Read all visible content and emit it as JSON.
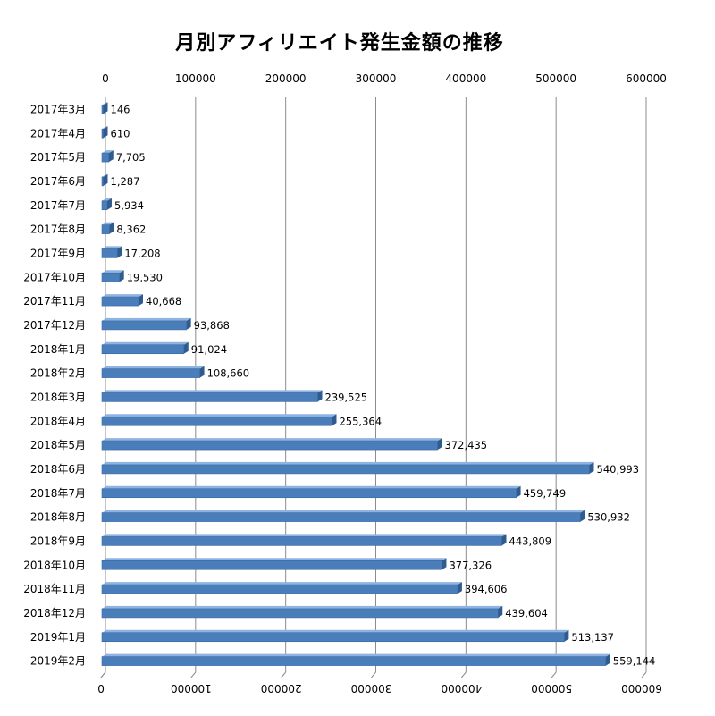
{
  "chart_data": {
    "type": "bar",
    "orientation": "horizontal",
    "style": "3d",
    "title": "月別アフィリエイト発生金額の推移",
    "xlabel": "",
    "ylabel": "",
    "xlim": [
      0,
      600000
    ],
    "ticks": [
      "0",
      "100000",
      "200000",
      "300000",
      "400000",
      "500000",
      "600000"
    ],
    "tick_values": [
      0,
      100000,
      200000,
      300000,
      400000,
      500000,
      600000
    ],
    "grid": true,
    "legend": "none",
    "bar_color": "#4a7ebb",
    "categories": [
      "2017年3月",
      "2017年4月",
      "2017年5月",
      "2017年6月",
      "2017年7月",
      "2017年8月",
      "2017年9月",
      "2017年10月",
      "2017年11月",
      "2017年12月",
      "2018年1月",
      "2018年2月",
      "2018年3月",
      "2018年4月",
      "2018年5月",
      "2018年6月",
      "2018年7月",
      "2018年8月",
      "2018年9月",
      "2018年10月",
      "2018年11月",
      "2018年12月",
      "2019年1月",
      "2019年2月"
    ],
    "values": [
      146,
      610,
      7705,
      1287,
      5934,
      8362,
      17208,
      19530,
      40668,
      93868,
      91024,
      108660,
      239525,
      255364,
      372435,
      540993,
      459749,
      530932,
      443809,
      377326,
      394606,
      439604,
      513137,
      559144
    ],
    "value_labels": [
      "146",
      "610",
      "7,705",
      "1,287",
      "5,934",
      "8,362",
      "17,208",
      "19,530",
      "40,668",
      "93,868",
      "91,024",
      "108,660",
      "239,525",
      "255,364",
      "372,435",
      "540,993",
      "459,749",
      "530,932",
      "443,809",
      "377,326",
      "394,606",
      "439,604",
      "513,137",
      "559,144"
    ]
  }
}
